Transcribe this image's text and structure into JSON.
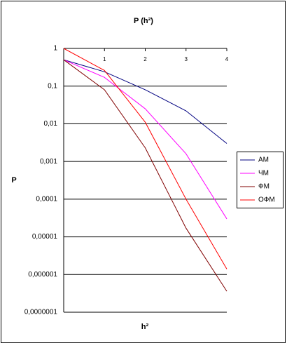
{
  "chart_data": {
    "type": "line",
    "title": "P (h²)",
    "x_label": "h²",
    "y_label": "P",
    "x": [
      0,
      1,
      2,
      3,
      4
    ],
    "xlim": [
      0,
      4
    ],
    "xticks": [
      1,
      2,
      3,
      4
    ],
    "ylim": [
      1e-07,
      1
    ],
    "log_y": true,
    "grid": true,
    "legend": "right",
    "yticks": [
      1,
      {
        "value": 0.1,
        "label": "0,1"
      },
      {
        "value": 0.01,
        "label": "0,01"
      },
      {
        "value": 0.001,
        "label": "0,001"
      },
      {
        "value": 0.0001,
        "label": "0,0001"
      },
      {
        "value": 1e-05,
        "label": "0,00001"
      },
      {
        "value": 1e-06,
        "label": "0,000001"
      },
      {
        "value": 1e-07,
        "label": "0,0000001"
      }
    ],
    "series": [
      {
        "name": "АМ",
        "color": "#000080",
        "values": [
          0.5,
          0.24,
          0.08,
          0.022,
          0.003
        ]
      },
      {
        "name": "ЧМ",
        "color": "#ff00ff",
        "values": [
          0.5,
          0.17,
          0.025,
          0.0016,
          3e-05
        ]
      },
      {
        "name": "ФМ",
        "color": "#800000",
        "values": [
          0.5,
          0.08,
          0.0023,
          1.7e-05,
          3.6e-07
        ]
      },
      {
        "name": "ОФМ",
        "color": "#ff0000",
        "values": [
          1,
          0.26,
          0.011,
          0.0001,
          1.4e-06
        ]
      }
    ]
  }
}
